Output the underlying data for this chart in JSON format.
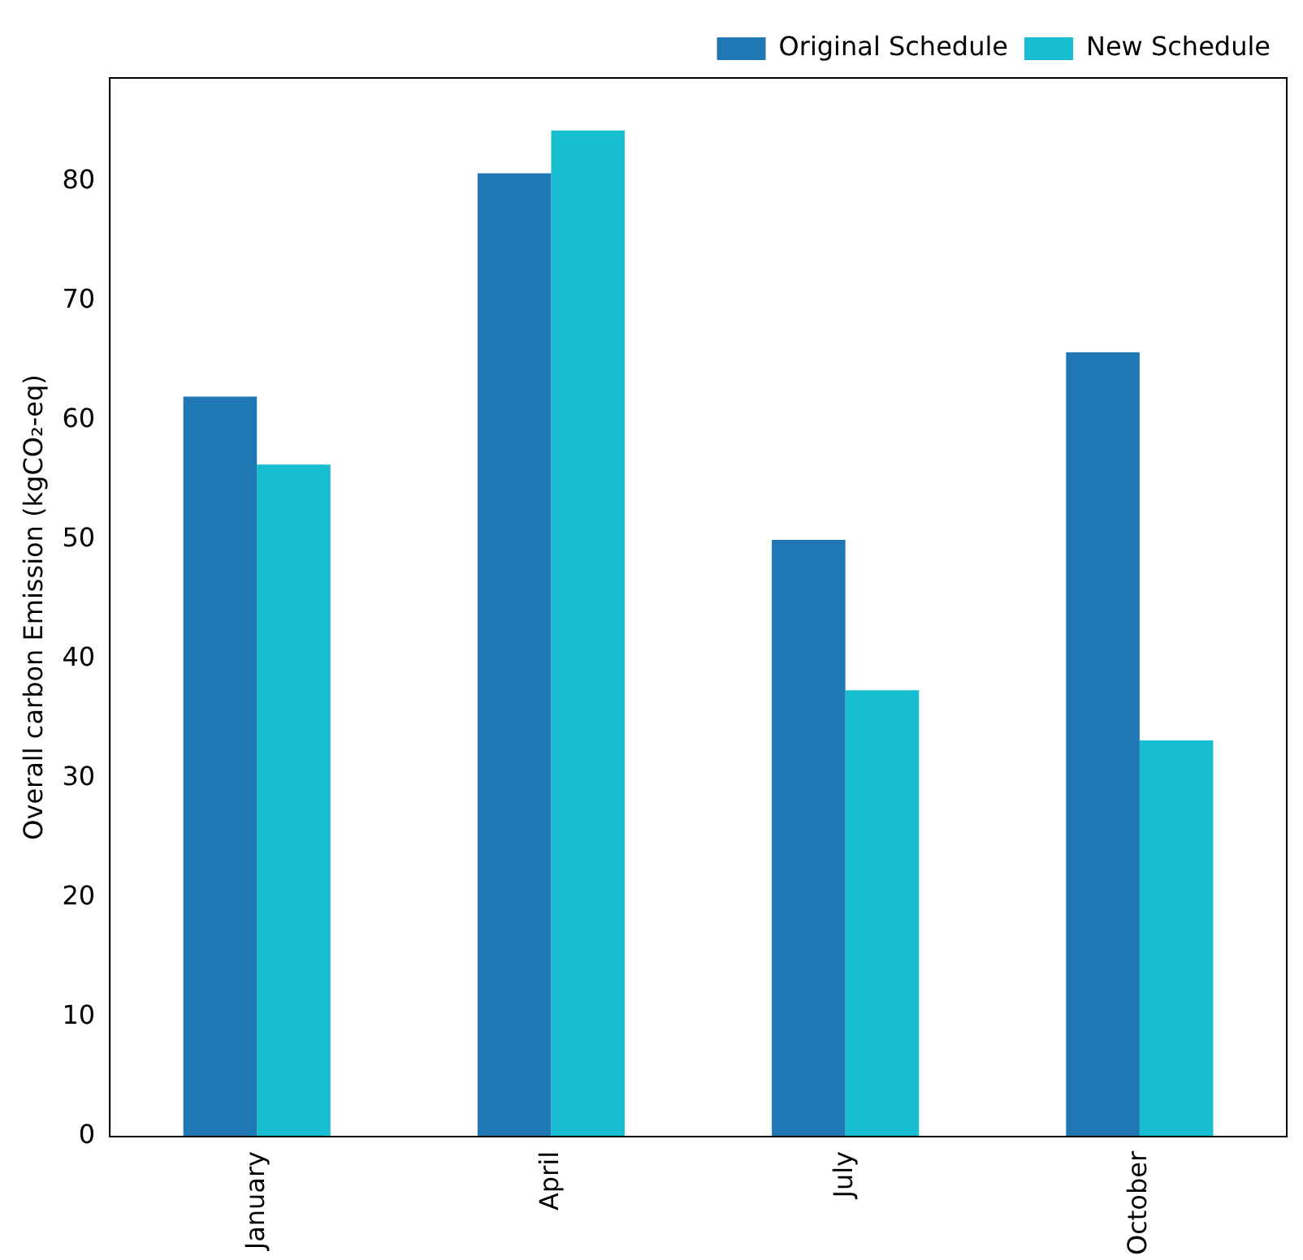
{
  "chart_data": {
    "type": "bar",
    "ylabel": "Overall carbon Emission (kgCO₂-eq)",
    "categories": [
      "January",
      "April",
      "July",
      "October"
    ],
    "series": [
      {
        "name": "Original Schedule",
        "color": "#1f77b4",
        "values": [
          62,
          80.7,
          50,
          65.7
        ]
      },
      {
        "name": "New Schedule",
        "color": "#17becf",
        "values": [
          56.3,
          84.3,
          37.4,
          33.2
        ]
      }
    ],
    "ylim": [
      0,
      88.7
    ],
    "yticks": [
      0,
      10,
      20,
      30,
      40,
      50,
      60,
      70,
      80
    ],
    "grid": false,
    "legend": "top right"
  }
}
